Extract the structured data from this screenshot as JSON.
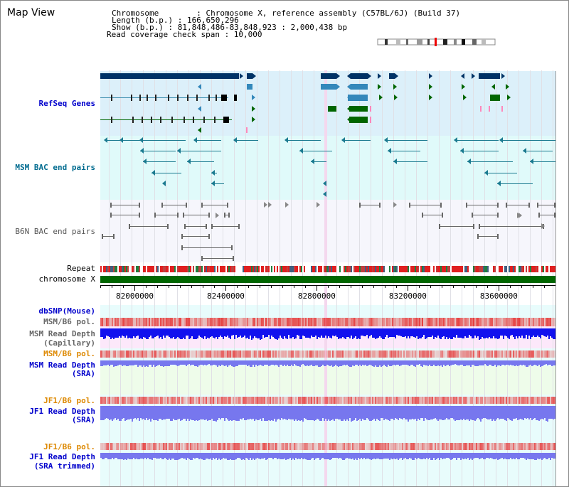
{
  "header": {
    "title": "Map View",
    "info_lines": [
      "Chromosome        : Chromosome X, reference assembly (C57BL/6J) (Build 37)",
      "Length (b.p.) : 166,650,296",
      "Show (b.p.) : 81,848,486-83,848,923 : 2,000,438 bp",
      "Read coverage check span : 10,000"
    ]
  },
  "tracks": {
    "refseq": {
      "label": "RefSeq Genes",
      "color": "#0000cc"
    },
    "msm_bac": {
      "label": "MSM BAC end pairs",
      "color": "#006b8f"
    },
    "b6n_bac": {
      "label": "B6N BAC end pairs",
      "color": "#555555"
    },
    "repeat": {
      "label": "Repeat"
    },
    "chrom": {
      "label": "chromosome X"
    },
    "dbsnp": {
      "label": "dbSNP(Mouse)"
    },
    "msm_b6_pol_1": {
      "label": "MSM/B6 pol."
    },
    "msm_depth_cap": {
      "label": "MSM Read Depth",
      "label2": "(Capillary)"
    },
    "msm_b6_pol_2": {
      "label": "MSM/B6 pol."
    },
    "msm_depth_sra": {
      "label": "MSM Read Depth",
      "label2": "(SRA)"
    },
    "jf1_b6_pol_1": {
      "label": "JF1/B6 pol."
    },
    "jf1_depth_sra": {
      "label": "JF1 Read Depth",
      "label2": "(SRA)"
    },
    "jf1_b6_pol_2": {
      "label": "JF1/B6 pol."
    },
    "jf1_depth_trim": {
      "label": "JF1 Read Depth",
      "label2": "(SRA trimmed)"
    }
  },
  "axis": {
    "ticks": [
      "82000000",
      "82400000",
      "82800000",
      "83200000",
      "83600000"
    ],
    "tick_values": [
      82000000,
      82400000,
      82800000,
      83200000,
      83600000
    ],
    "start": 81848486,
    "end": 83848923
  },
  "colors": {
    "refseq_bg": "#dcf0fa",
    "msm_bg": "#e0fafa",
    "b6n_bg": "#f6f6fc",
    "lower_bg": "#e8fcfc",
    "gene_dark": "#003366",
    "gene_mid": "#3388bb",
    "gene_green": "#006600",
    "chrom_bar": "#006600",
    "depth_blue": "#1111ee",
    "depth_light": "#7777ee",
    "pol_red": "#ee3333"
  }
}
